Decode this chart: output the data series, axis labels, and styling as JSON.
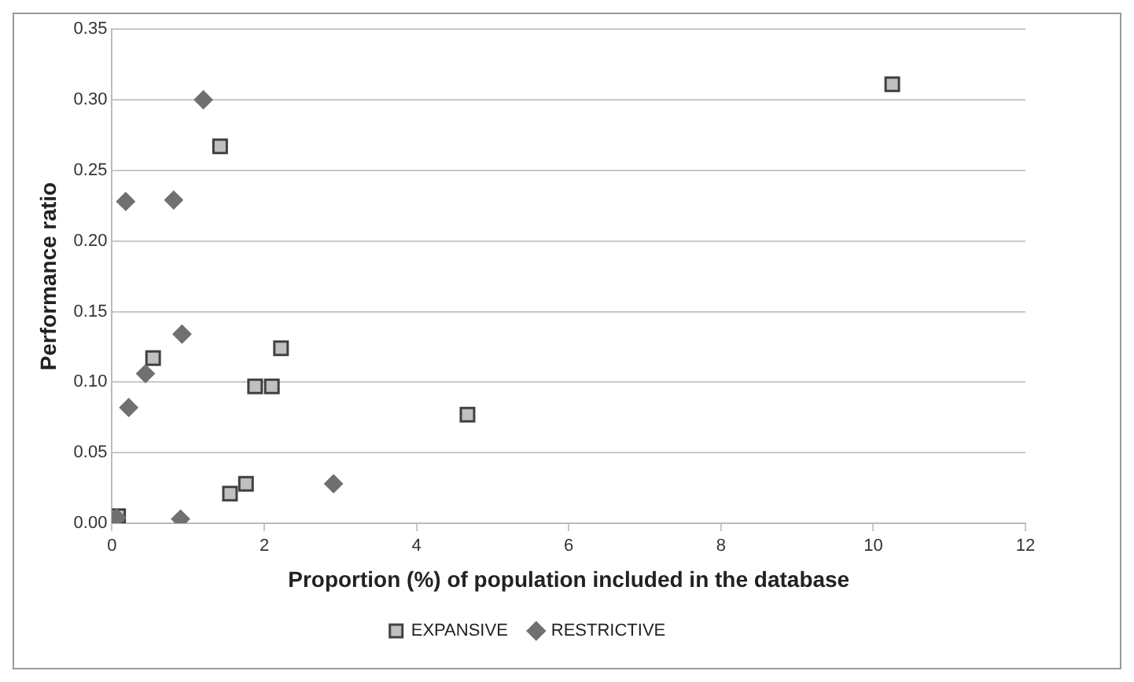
{
  "chart_data": {
    "type": "scatter",
    "xlabel": "Proportion (%) of population included in the database",
    "ylabel": "Performance ratio",
    "xlim": [
      0,
      12
    ],
    "xticks": [
      0,
      2,
      4,
      6,
      8,
      10,
      12
    ],
    "ylim": [
      0,
      0.35
    ],
    "yticks": [
      {
        "value": 0,
        "label": "0.00"
      },
      {
        "value": 0.05,
        "label": "0.05"
      },
      {
        "value": 0.1,
        "label": "0.10"
      },
      {
        "value": 0.15,
        "label": "0.15"
      },
      {
        "value": 0.2,
        "label": "0.20"
      },
      {
        "value": 0.25,
        "label": "0.25"
      },
      {
        "value": 0.3,
        "label": "0.30"
      },
      {
        "value": 0.35,
        "label": "0.35"
      }
    ],
    "grid": "y",
    "legend": "bottom",
    "series": [
      {
        "name": "EXPANSIVE",
        "color": "#c0c0c0",
        "marker": "square",
        "x": [
          1.42,
          0.54,
          1.88,
          2.1,
          2.22,
          1.55,
          1.76,
          0.08,
          4.67,
          10.25
        ],
        "values": [
          0.267,
          0.117,
          0.097,
          0.097,
          0.124,
          0.021,
          0.028,
          0.005,
          0.077,
          0.311
        ]
      },
      {
        "name": "RESTRICTIVE",
        "color": "#707070",
        "marker": "diamond",
        "x": [
          1.2,
          0.18,
          0.81,
          0.92,
          0.44,
          0.22,
          0.06,
          0.9,
          2.91
        ],
        "values": [
          0.3,
          0.228,
          0.229,
          0.134,
          0.106,
          0.082,
          0.004,
          0.003,
          0.028
        ]
      }
    ]
  }
}
